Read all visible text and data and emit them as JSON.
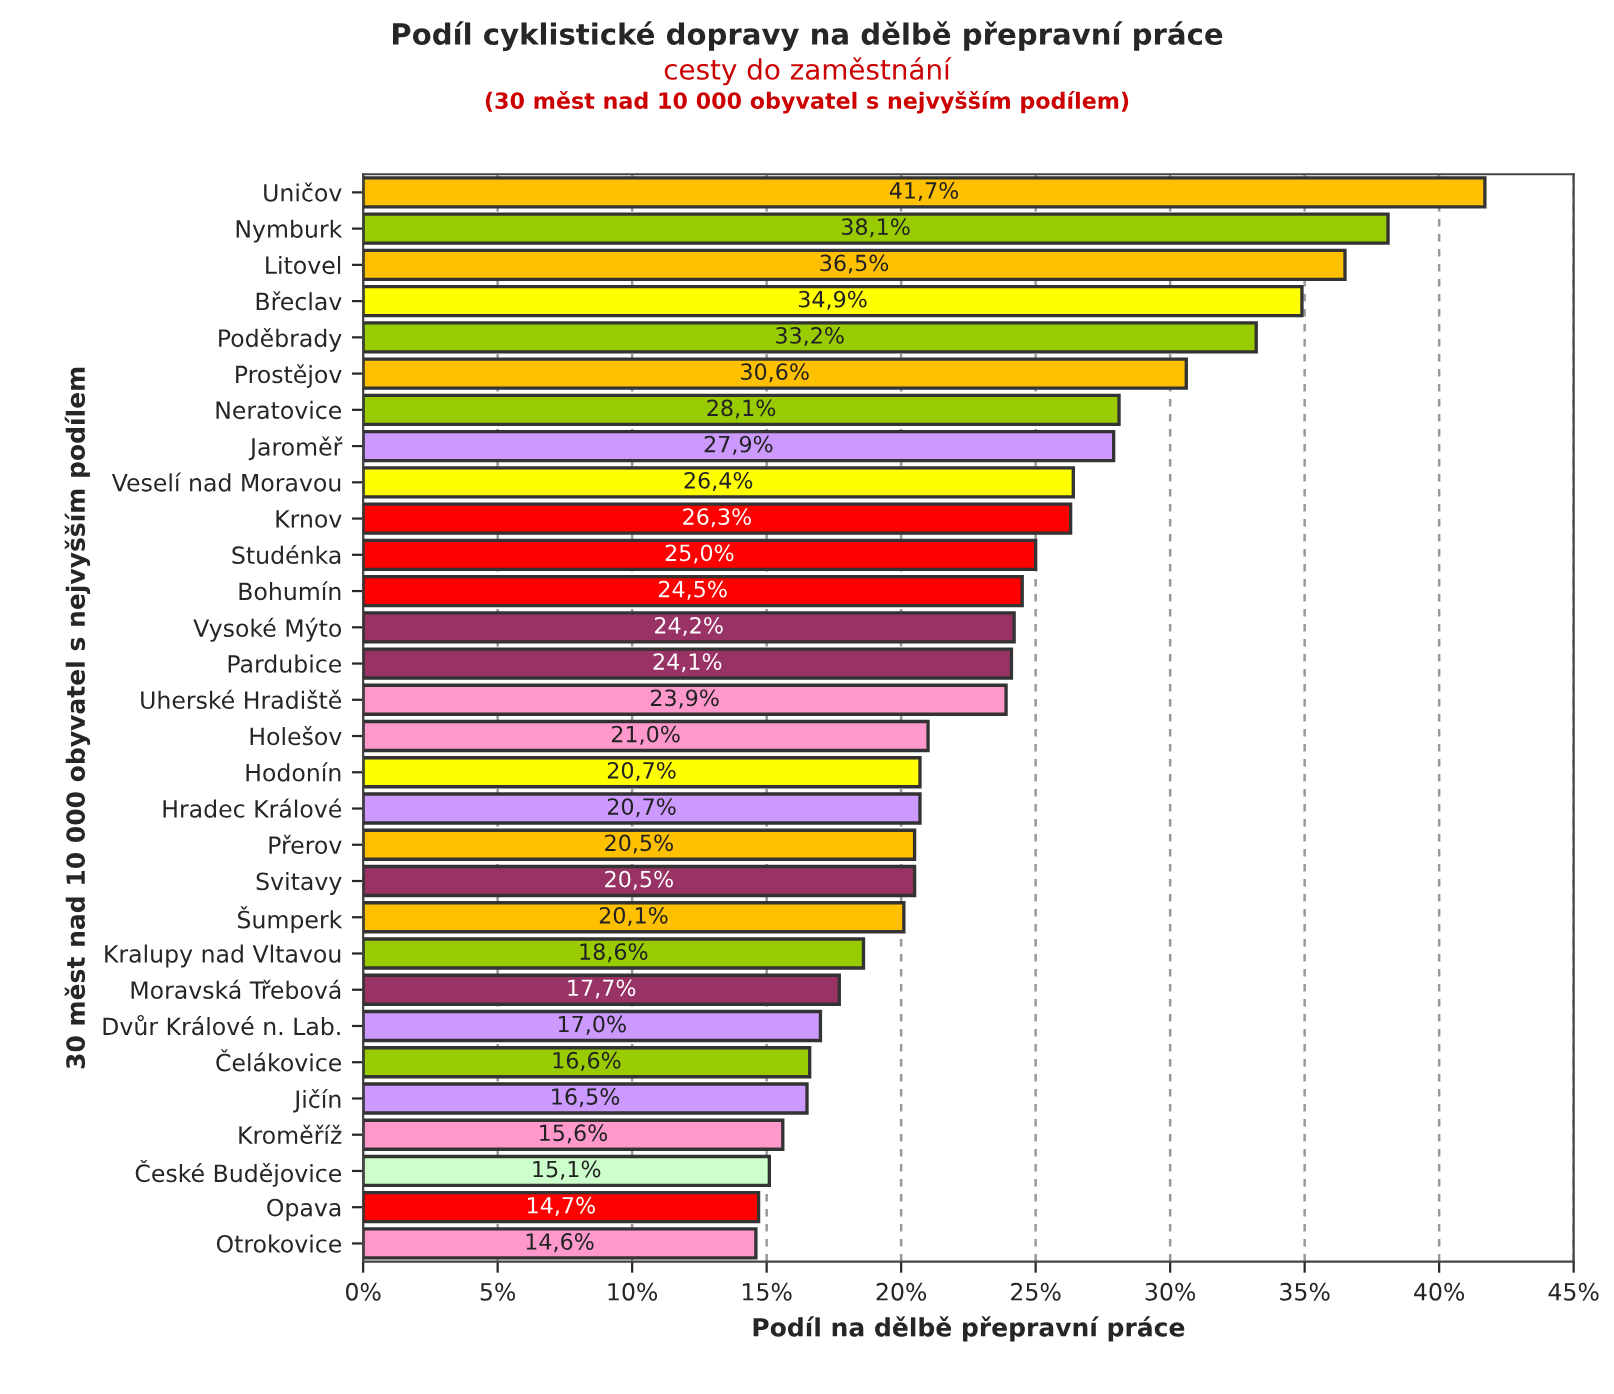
{
  "chart_data": {
    "type": "bar",
    "orientation": "horizontal",
    "title": "Podíl cyklistické dopravy na dělbě přepravní práce",
    "subtitle": "cesty do zaměstnání",
    "annotations": [
      "(30 měst nad 10 000 obyvatel s nejvyšším podílem)"
    ],
    "xlabel": "Podíl na dělbě přepravní práce",
    "ylabel": "30 měst nad 10 000 obyvatel s nejvyšším podílem",
    "categories": [
      "Uničov",
      "Nymburk",
      "Litovel",
      "Břeclav",
      "Poděbrady",
      "Prostějov",
      "Neratovice",
      "Jaroměř",
      "Veselí nad Moravou",
      "Krnov",
      "Studénka",
      "Bohumín",
      "Vysoké Mýto",
      "Pardubice",
      "Uherské Hradiště",
      "Holešov",
      "Hodonín",
      "Hradec Králové",
      "Přerov",
      "Svitavy",
      "Šumperk",
      "Kralupy nad Vltavou",
      "Moravská Třebová",
      "Dvůr Králové n. Lab.",
      "Čelákovice",
      "Jičín",
      "Kroměříž",
      "České Budějovice",
      "Opava",
      "Otrokovice"
    ],
    "values": [
      41.7,
      38.1,
      36.5,
      34.9,
      33.2,
      30.6,
      28.1,
      27.9,
      26.4,
      26.3,
      25.0,
      24.5,
      24.2,
      24.1,
      23.9,
      21.0,
      20.7,
      20.7,
      20.5,
      20.5,
      20.1,
      18.6,
      17.7,
      17.0,
      16.6,
      16.5,
      15.6,
      15.1,
      14.7,
      14.6
    ],
    "value_labels": [
      "41,7%",
      "38,1%",
      "36,5%",
      "34,9%",
      "33,2%",
      "30,6%",
      "28,1%",
      "27,9%",
      "26,4%",
      "26,3%",
      "25,0%",
      "24,5%",
      "24,2%",
      "24,1%",
      "23,9%",
      "21,0%",
      "20,7%",
      "20,7%",
      "20,5%",
      "20,5%",
      "20,1%",
      "18,6%",
      "17,7%",
      "17,0%",
      "16,6%",
      "16,5%",
      "15,6%",
      "15,1%",
      "14,7%",
      "14,6%"
    ],
    "colors": [
      "#ffc000",
      "#99cc00",
      "#ffc000",
      "#ffff00",
      "#99cc00",
      "#ffc000",
      "#99cc00",
      "#cc99ff",
      "#ffff00",
      "#ff0000",
      "#ff0000",
      "#ff0000",
      "#993366",
      "#993366",
      "#ff99cc",
      "#ff99cc",
      "#ffff00",
      "#cc99ff",
      "#ffc000",
      "#993366",
      "#ffc000",
      "#99cc00",
      "#993366",
      "#cc99ff",
      "#99cc00",
      "#cc99ff",
      "#ff99cc",
      "#ccffcc",
      "#ff0000",
      "#ff99cc"
    ],
    "xlim": [
      0,
      45
    ],
    "xticks": [
      {
        "value": 0,
        "label": "0%"
      },
      {
        "value": 5,
        "label": "5%"
      },
      {
        "value": 10,
        "label": "10%"
      },
      {
        "value": 15,
        "label": "15%"
      },
      {
        "value": 20,
        "label": "20%"
      },
      {
        "value": 25,
        "label": "25%"
      },
      {
        "value": 30,
        "label": "30%"
      },
      {
        "value": 35,
        "label": "35%"
      },
      {
        "value": 40,
        "label": "40%"
      },
      {
        "value": 45,
        "label": "45%"
      }
    ],
    "grid": "x",
    "legend": false
  }
}
